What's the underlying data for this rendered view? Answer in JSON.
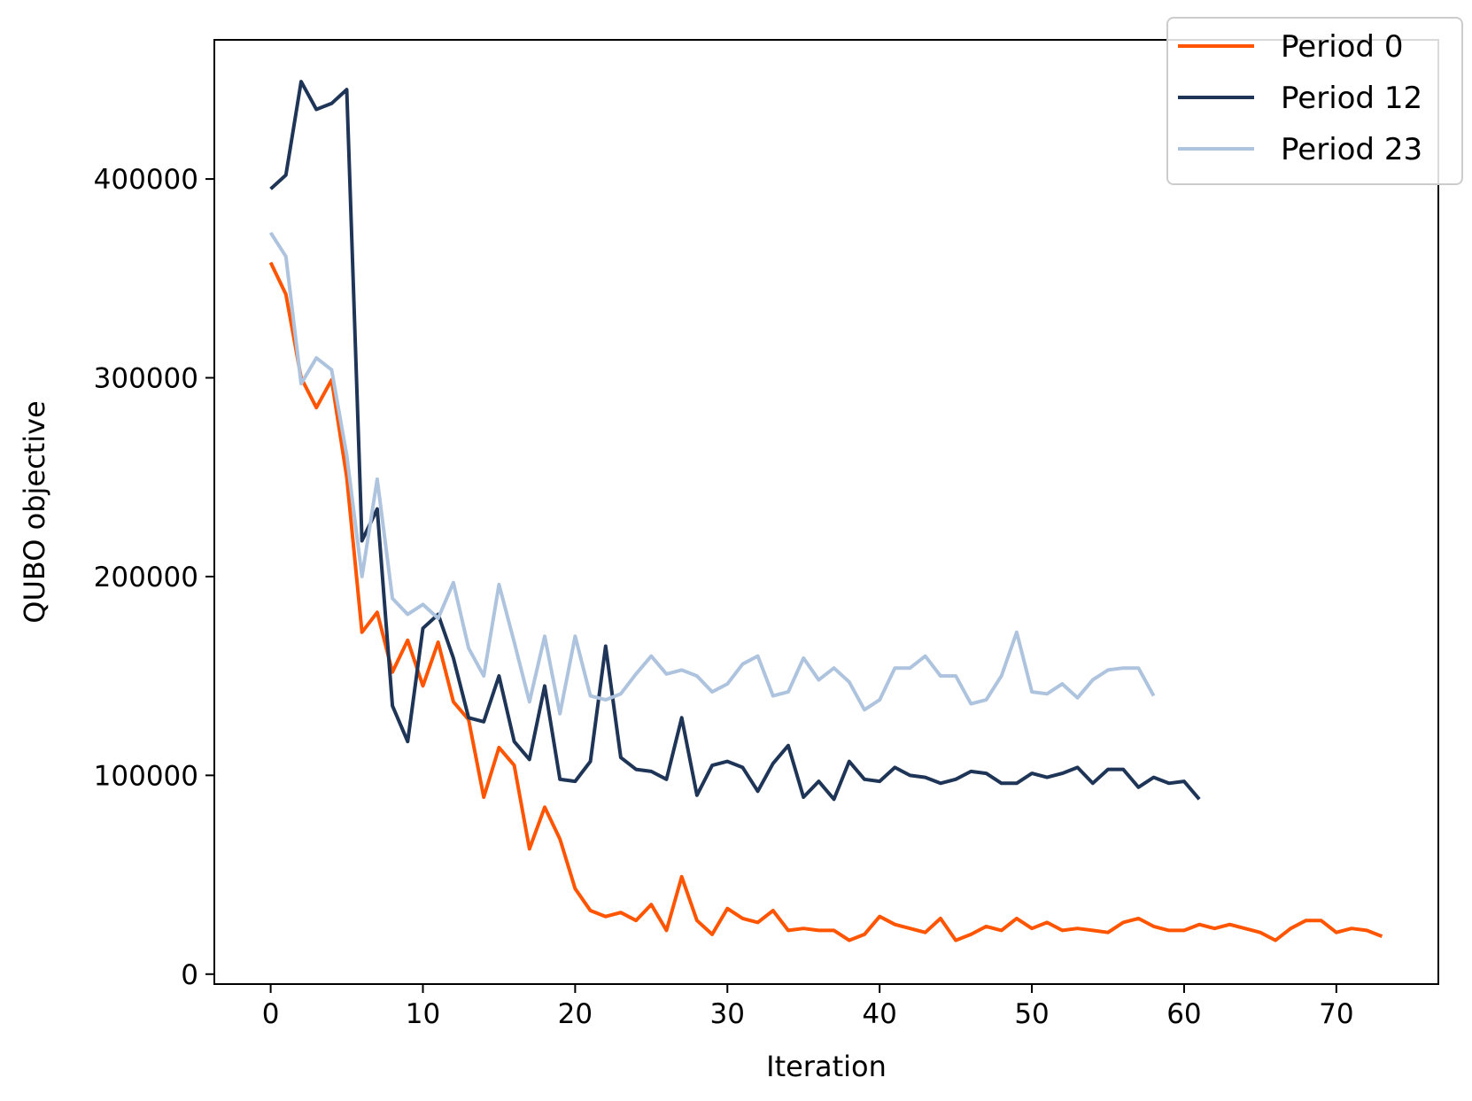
{
  "chart_data": {
    "type": "line",
    "title": "",
    "xlabel": "Iteration",
    "ylabel": "QUBO objective",
    "xlim": [
      -3.7,
      76.7
    ],
    "ylim": [
      -5000,
      470000
    ],
    "xticks": [
      0,
      10,
      20,
      30,
      40,
      50,
      60,
      70
    ],
    "yticks": [
      0,
      100000,
      200000,
      300000,
      400000
    ],
    "grid": false,
    "legend_position": "top-right",
    "series": [
      {
        "name": "Period 0",
        "color": "#ff5500",
        "values": [
          358000,
          342000,
          300000,
          285000,
          299000,
          250000,
          172000,
          182000,
          152000,
          168000,
          145000,
          167000,
          137000,
          128000,
          89000,
          114000,
          105000,
          63000,
          84000,
          68000,
          43000,
          32000,
          29000,
          31000,
          27000,
          35000,
          22000,
          49000,
          27000,
          20000,
          33000,
          28000,
          26000,
          32000,
          22000,
          23000,
          22000,
          22000,
          17000,
          20000,
          29000,
          25000,
          23000,
          21000,
          28000,
          17000,
          20000,
          24000,
          22000,
          28000,
          23000,
          26000,
          22000,
          23000,
          22000,
          21000,
          26000,
          28000,
          24000,
          22000,
          22000,
          25000,
          23000,
          25000,
          23000,
          21000,
          17000,
          23000,
          27000,
          27000,
          21000,
          23000,
          22000,
          19000
        ]
      },
      {
        "name": "Period 12",
        "color": "#1f3557",
        "values": [
          395000,
          402000,
          449000,
          435000,
          438000,
          445000,
          218000,
          234000,
          135000,
          117000,
          174000,
          181000,
          159000,
          129000,
          127000,
          150000,
          117000,
          108000,
          145000,
          98000,
          97000,
          107000,
          165000,
          109000,
          103000,
          102000,
          98000,
          129000,
          90000,
          105000,
          107000,
          104000,
          92000,
          106000,
          115000,
          89000,
          97000,
          88000,
          107000,
          98000,
          97000,
          104000,
          100000,
          99000,
          96000,
          98000,
          102000,
          101000,
          96000,
          96000,
          101000,
          99000,
          101000,
          104000,
          96000,
          103000,
          103000,
          94000,
          99000,
          96000,
          97000,
          88000
        ]
      },
      {
        "name": "Period 23",
        "color": "#adc3de",
        "values": [
          373000,
          361000,
          297000,
          310000,
          304000,
          261000,
          200000,
          249000,
          189000,
          181000,
          186000,
          179000,
          197000,
          164000,
          150000,
          196000,
          167000,
          137000,
          170000,
          131000,
          170000,
          140000,
          138000,
          141000,
          151000,
          160000,
          151000,
          153000,
          150000,
          142000,
          146000,
          156000,
          160000,
          140000,
          142000,
          159000,
          148000,
          154000,
          147000,
          133000,
          138000,
          154000,
          154000,
          160000,
          150000,
          150000,
          136000,
          138000,
          150000,
          172000,
          142000,
          141000,
          146000,
          139000,
          148000,
          153000,
          154000,
          154000,
          140000
        ]
      }
    ]
  }
}
